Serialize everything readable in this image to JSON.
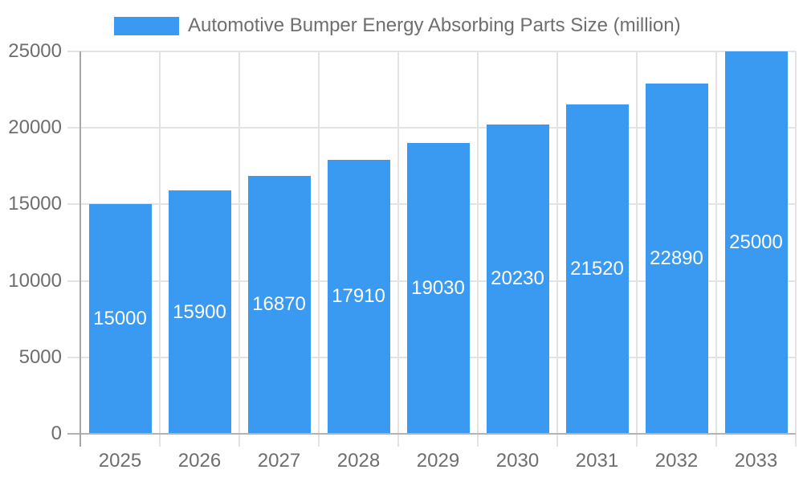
{
  "chart_data": {
    "type": "bar",
    "title": "Automotive Bumper Energy Absorbing Parts Size (million)",
    "categories": [
      "2025",
      "2026",
      "2027",
      "2028",
      "2029",
      "2030",
      "2031",
      "2032",
      "2033"
    ],
    "series": [
      {
        "name": "Automotive Bumper Energy Absorbing Parts Size (million)",
        "values": [
          15000,
          15900,
          16870,
          17910,
          19030,
          20230,
          21520,
          22890,
          25000
        ]
      }
    ],
    "xlabel": "",
    "ylabel": "",
    "ylim": [
      0,
      25000
    ],
    "yticks": [
      0,
      5000,
      10000,
      15000,
      20000,
      25000
    ],
    "grid": true,
    "legend_position": "top",
    "data_labels_position": "inside-center",
    "colors": {
      "bar": "#3A99F0",
      "bar_label_text": "#FFFFFF",
      "axis_text": "#6E6E6E",
      "gridline": "#E3E3E3",
      "y_axis_line": "#A6A6A6",
      "x_axis_line": "#B3B3B3",
      "background": "#FFFFFF"
    }
  }
}
